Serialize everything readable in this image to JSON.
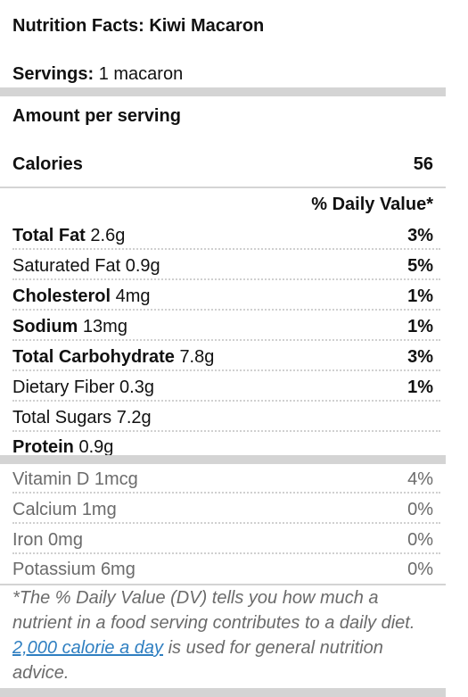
{
  "header": {
    "title": "Nutrition Facts: Kiwi Macaron",
    "servings_label": "Servings:",
    "servings_value": "1 macaron"
  },
  "amount_per_serving": "Amount per serving",
  "calories": {
    "label": "Calories",
    "value": "56"
  },
  "daily_value_header": "% Daily Value*",
  "nutrients": [
    {
      "name": "Total Fat",
      "amount": "2.6g",
      "dv": "3%"
    },
    {
      "name": "Saturated Fat",
      "amount": "0.9g",
      "dv": "5%"
    },
    {
      "name": "Cholesterol",
      "amount": "4mg",
      "dv": "1%"
    },
    {
      "name": "Sodium",
      "amount": "13mg",
      "dv": "1%"
    },
    {
      "name": "Total Carbohydrate",
      "amount": "7.8g",
      "dv": "3%"
    },
    {
      "name": "Dietary Fiber",
      "amount": "0.3g",
      "dv": "1%"
    },
    {
      "name": "Total Sugars",
      "amount": "7.2g",
      "dv": ""
    },
    {
      "name": "Protein",
      "amount": "0.9g",
      "dv": ""
    }
  ],
  "vitamins": [
    {
      "name": "Vitamin D",
      "amount": "1mcg",
      "dv": "4%"
    },
    {
      "name": "Calcium",
      "amount": "1mg",
      "dv": "0%"
    },
    {
      "name": "Iron",
      "amount": "0mg",
      "dv": "0%"
    },
    {
      "name": "Potassium",
      "amount": "6mg",
      "dv": "0%"
    }
  ],
  "footnote": {
    "before": "*The % Daily Value (DV) tells you how much a nutrient in a food serving contributes to a daily diet. ",
    "link": "2,000 calorie a day",
    "after": " is used for general nutrition advice."
  }
}
